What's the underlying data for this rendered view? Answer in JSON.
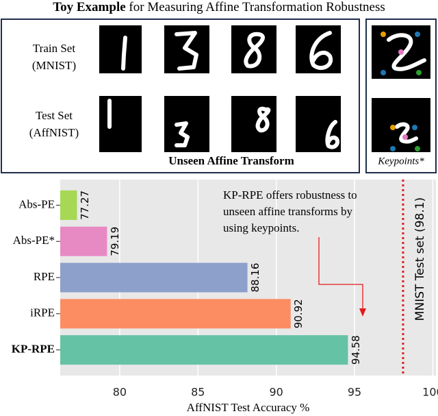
{
  "header": {
    "title_bold": "Toy Example",
    "title_rest": "for Measuring Affine Transformation Robustness"
  },
  "panel": {
    "rows": [
      {
        "label": "Train Set",
        "sublabel": "(MNIST)"
      },
      {
        "label": "Test Set",
        "sublabel": "(AffNIST)"
      }
    ],
    "caption": "Unseen Affine Transform",
    "keypoints_caption": "Keypoints*"
  },
  "chart_data": {
    "type": "bar",
    "orientation": "horizontal",
    "categories": [
      "Abs-PE",
      "Abs-PE*",
      "RPE",
      "iRPE",
      "KP-RPE"
    ],
    "values": [
      77.27,
      79.19,
      88.16,
      90.92,
      94.58
    ],
    "colors": [
      "#a6d854",
      "#e78ac3",
      "#8da0cb",
      "#fc8d62",
      "#66c2a5"
    ],
    "bold_category": "KP-RPE",
    "xlabel": "AffNIST Test Accuracy %",
    "xlim": [
      76.2,
      100.2
    ],
    "xticks": [
      80,
      85,
      90,
      95,
      100
    ],
    "grid": true,
    "annotation": [
      "KP-RPE offers robustness to",
      "unseen affine transforms by",
      "using keypoints."
    ],
    "reference_line": {
      "value": 98.1,
      "label": "MNIST Test set (98.1)",
      "color": "#e31a1c"
    }
  }
}
